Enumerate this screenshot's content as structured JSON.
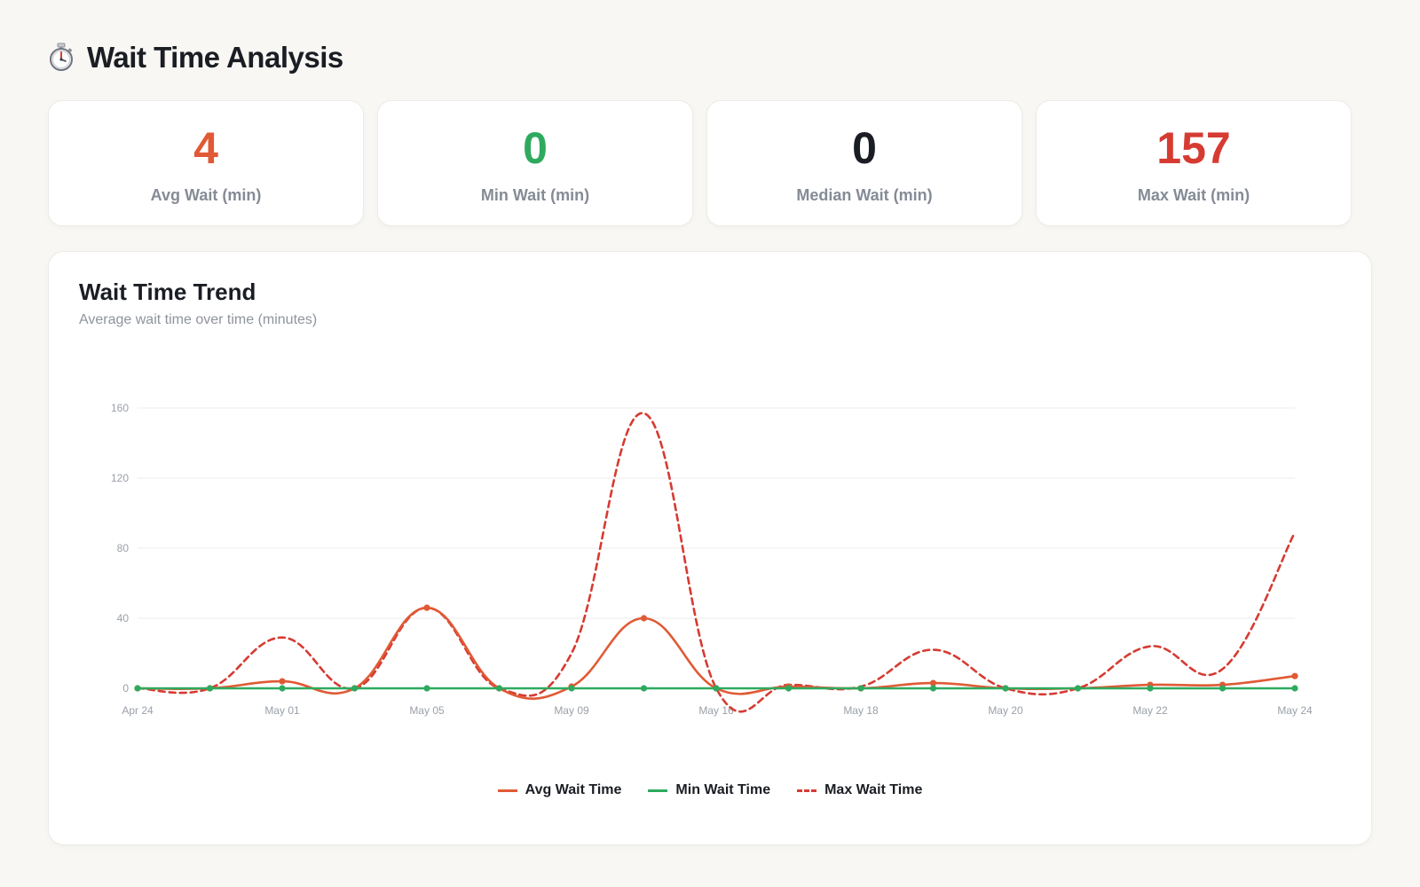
{
  "header": {
    "title": "Wait Time Analysis",
    "icon": "stopwatch-icon"
  },
  "stats": [
    {
      "value": "4",
      "label": "Avg Wait (min)",
      "color": "#e05a35"
    },
    {
      "value": "0",
      "label": "Min Wait (min)",
      "color": "#2eaa5f"
    },
    {
      "value": "0",
      "label": "Median Wait (min)",
      "color": "#1a1d23"
    },
    {
      "value": "157",
      "label": "Max Wait (min)",
      "color": "#d63b32"
    }
  ],
  "chart": {
    "title": "Wait Time Trend",
    "subtitle": "Average wait time over time (minutes)"
  },
  "chart_data": {
    "type": "line",
    "title": "Wait Time Trend",
    "subtitle": "Average wait time over time (minutes)",
    "xlabel": "",
    "ylabel": "",
    "x_tick_labels": [
      "Apr 24",
      "",
      "May 01",
      "",
      "May 05",
      "",
      "May 09",
      "",
      "May 16",
      "",
      "May 18",
      "",
      "May 20",
      "",
      "May 22",
      "",
      "May 24"
    ],
    "ylim": [
      0,
      160
    ],
    "yticks": [
      0,
      40,
      80,
      120,
      160
    ],
    "grid": "horizontal",
    "legend": "bottom-center",
    "series": [
      {
        "name": "Avg Wait Time",
        "color": "#e05a35",
        "dashed": false,
        "show_points": true,
        "values": [
          0,
          0,
          4,
          0,
          46,
          0,
          1,
          40,
          0,
          1,
          0,
          3,
          0,
          0,
          2,
          2,
          7
        ]
      },
      {
        "name": "Min Wait Time",
        "color": "#2eaa5f",
        "dashed": false,
        "show_points": true,
        "values": [
          0,
          0,
          0,
          0,
          0,
          0,
          0,
          0,
          0,
          0,
          0,
          0,
          0,
          0,
          0,
          0,
          0
        ]
      },
      {
        "name": "Max Wait Time",
        "color": "#d63b32",
        "dashed": true,
        "show_points": false,
        "values": [
          0,
          0,
          29,
          0,
          46,
          0,
          20,
          157,
          0,
          2,
          1,
          22,
          0,
          0,
          24,
          11,
          89
        ]
      }
    ]
  }
}
